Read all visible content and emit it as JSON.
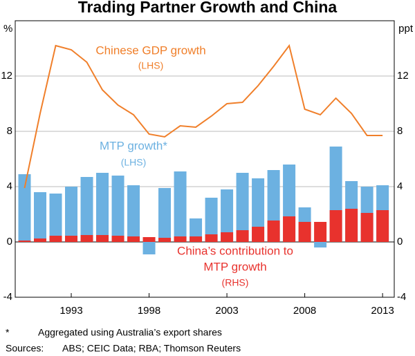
{
  "chart_data": {
    "type": "bar-line",
    "title": "Trading Partner Growth and China",
    "y_unit": "%",
    "y2_unit": "ppt",
    "x": [
      1990,
      1991,
      1992,
      1993,
      1994,
      1995,
      1996,
      1997,
      1998,
      1999,
      2000,
      2001,
      2002,
      2003,
      2004,
      2005,
      2006,
      2007,
      2008,
      2009,
      2010,
      2011,
      2012,
      2013
    ],
    "xlim": [
      1989.4,
      2013.75
    ],
    "xticks": [
      1993,
      1998,
      2003,
      2008,
      2013
    ],
    "ylim": [
      -4,
      16
    ],
    "yticks": [
      -4,
      0,
      4,
      8,
      12
    ],
    "y2lim": [
      -4,
      16
    ],
    "y2ticks": [
      -4,
      0,
      4,
      8,
      12
    ],
    "grid": true,
    "series": [
      {
        "name": "MTP growth*",
        "type": "bar",
        "color": "#6cb1e1",
        "values": [
          4.9,
          3.6,
          3.5,
          4.0,
          4.7,
          5.0,
          4.8,
          4.1,
          -0.9,
          3.9,
          5.1,
          1.7,
          3.2,
          3.8,
          5.0,
          4.6,
          5.2,
          5.6,
          2.5,
          -0.4,
          6.9,
          4.4,
          4.0,
          4.1
        ]
      },
      {
        "name": "China's contribution to MTP growth",
        "type": "bar",
        "axis": "y2",
        "color": "#e8322d",
        "values": [
          0.1,
          0.25,
          0.45,
          0.45,
          0.5,
          0.5,
          0.45,
          0.4,
          0.35,
          0.3,
          0.4,
          0.4,
          0.55,
          0.7,
          0.85,
          1.1,
          1.55,
          1.85,
          1.45,
          1.45,
          2.3,
          2.4,
          2.1,
          2.3
        ]
      },
      {
        "name": "Chinese GDP growth",
        "type": "line",
        "color": "#f07f2a",
        "values": [
          3.9,
          9.3,
          14.2,
          13.9,
          13.0,
          11.0,
          9.9,
          9.2,
          7.8,
          7.6,
          8.4,
          8.3,
          9.1,
          10.0,
          10.1,
          11.3,
          12.7,
          14.2,
          9.6,
          9.2,
          10.4,
          9.3,
          7.7,
          7.7
        ]
      }
    ],
    "annotations": [
      "Chinese GDP growth",
      "(LHS)",
      "MTP growth*",
      "(LHS)",
      "China’s contribution to",
      "MTP growth",
      "(RHS)"
    ],
    "footnotes": [
      "*",
      "Aggregated using Australia’s export shares",
      "Sources:",
      "ABS; CEIC Data; RBA; Thomson Reuters"
    ]
  }
}
